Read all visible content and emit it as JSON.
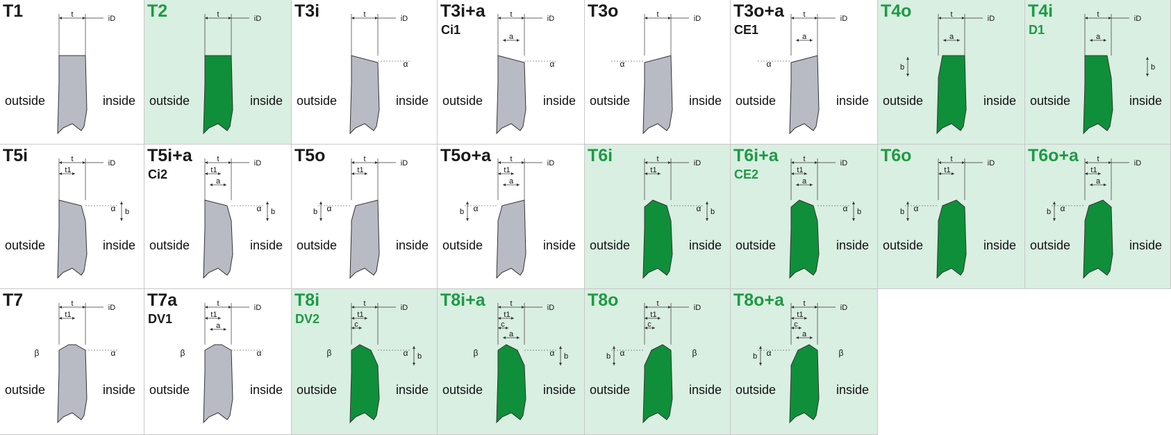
{
  "colors": {
    "highlight_background": "#d9efe1",
    "highlight_title": "#1e9a45",
    "tooth_green": "#0f8f3a",
    "tooth_grey": "#b8bac4",
    "border": "#c8c8c8"
  },
  "rows": [
    [
      {
        "id": "T1",
        "sub": "",
        "hl": false,
        "fill": "grey",
        "shape": "flat",
        "labels": [
          "t",
          "iD"
        ]
      },
      {
        "id": "T2",
        "sub": "",
        "hl": true,
        "fill": "green",
        "shape": "flat",
        "labels": [
          "t",
          "iD"
        ]
      },
      {
        "id": "T3i",
        "sub": "",
        "hl": false,
        "fill": "grey",
        "shape": "bevel-in",
        "labels": [
          "t",
          "iD",
          "α"
        ]
      },
      {
        "id": "T3i+a",
        "sub": "Ci1",
        "hl": false,
        "fill": "grey",
        "shape": "bevel-in-a",
        "labels": [
          "t",
          "iD",
          "a",
          "α"
        ]
      },
      {
        "id": "T3o",
        "sub": "",
        "hl": false,
        "fill": "grey",
        "shape": "bevel-out",
        "labels": [
          "t",
          "iD",
          "α"
        ]
      },
      {
        "id": "T3o+a",
        "sub": "CE1",
        "hl": false,
        "fill": "grey",
        "shape": "bevel-out-a",
        "labels": [
          "t",
          "iD",
          "a",
          "α"
        ]
      },
      {
        "id": "T4o",
        "sub": "",
        "hl": true,
        "fill": "green",
        "shape": "t4o",
        "labels": [
          "t",
          "iD",
          "a",
          "b"
        ]
      },
      {
        "id": "T4i",
        "sub": "D1",
        "hl": true,
        "fill": "green",
        "shape": "t4i",
        "labels": [
          "t",
          "iD",
          "a",
          "b"
        ]
      }
    ],
    [
      {
        "id": "T5i",
        "sub": "",
        "hl": false,
        "fill": "grey",
        "shape": "t5i",
        "labels": [
          "t",
          "iD",
          "t1",
          "α",
          "b"
        ]
      },
      {
        "id": "T5i+a",
        "sub": "Ci2",
        "hl": false,
        "fill": "grey",
        "shape": "t5i-a",
        "labels": [
          "t",
          "iD",
          "t1",
          "a",
          "α",
          "b"
        ]
      },
      {
        "id": "T5o",
        "sub": "",
        "hl": false,
        "fill": "grey",
        "shape": "t5o",
        "labels": [
          "t",
          "iD",
          "t1",
          "b",
          "α"
        ]
      },
      {
        "id": "T5o+a",
        "sub": "",
        "hl": false,
        "fill": "grey",
        "shape": "t5o-a",
        "labels": [
          "t",
          "iD",
          "t1",
          "a",
          "b",
          "α"
        ]
      },
      {
        "id": "T6i",
        "sub": "",
        "hl": true,
        "fill": "green",
        "shape": "t6i",
        "labels": [
          "t",
          "iD",
          "t1",
          "α",
          "b"
        ]
      },
      {
        "id": "T6i+a",
        "sub": "CE2",
        "hl": true,
        "fill": "green",
        "shape": "t6i-a",
        "labels": [
          "t",
          "iD",
          "t1",
          "a",
          "α",
          "b"
        ]
      },
      {
        "id": "T6o",
        "sub": "",
        "hl": true,
        "fill": "green",
        "shape": "t6o",
        "labels": [
          "t",
          "iD",
          "t1",
          "b",
          "α"
        ]
      },
      {
        "id": "T6o+a",
        "sub": "",
        "hl": true,
        "fill": "green",
        "shape": "t6o-a",
        "labels": [
          "t",
          "iD",
          "t1",
          "a",
          "b",
          "α"
        ]
      }
    ],
    [
      {
        "id": "T7",
        "sub": "",
        "hl": false,
        "fill": "grey",
        "shape": "t7",
        "labels": [
          "t",
          "iD",
          "t1",
          "α",
          "β"
        ]
      },
      {
        "id": "T7a",
        "sub": "DV1",
        "hl": false,
        "fill": "grey",
        "shape": "t7a",
        "labels": [
          "t",
          "iD",
          "t1",
          "a",
          "α",
          "β"
        ]
      },
      {
        "id": "T8i",
        "sub": "DV2",
        "hl": true,
        "fill": "green",
        "shape": "t8i",
        "labels": [
          "t",
          "iD",
          "t1",
          "c",
          "β",
          "α",
          "b"
        ]
      },
      {
        "id": "T8i+a",
        "sub": "",
        "hl": true,
        "fill": "green",
        "shape": "t8i-a",
        "labels": [
          "t",
          "iD",
          "t1",
          "c",
          "a",
          "β",
          "α",
          "b"
        ]
      },
      {
        "id": "T8o",
        "sub": "",
        "hl": true,
        "fill": "green",
        "shape": "t8o",
        "labels": [
          "t",
          "iD",
          "t1",
          "c",
          "b",
          "α",
          "β"
        ]
      },
      {
        "id": "T8o+a",
        "sub": "",
        "hl": true,
        "fill": "green",
        "shape": "t8o-a",
        "labels": [
          "t",
          "iD",
          "t1",
          "c",
          "a",
          "b",
          "α",
          "β"
        ]
      }
    ]
  ],
  "side_labels": {
    "outside": "outside",
    "inside": "inside"
  }
}
